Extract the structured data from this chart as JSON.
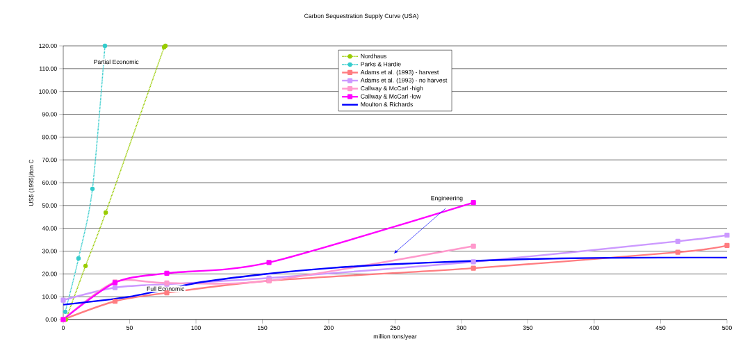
{
  "chart_data": {
    "type": "line",
    "title": "Carbon Sequestration Supply Curve (USA)",
    "xlabel": "million tons/year",
    "ylabel": "US$ (1995)/ton C",
    "xlim": [
      0,
      500
    ],
    "ylim": [
      0,
      120
    ],
    "xticks": [
      0,
      50,
      100,
      150,
      200,
      250,
      300,
      350,
      400,
      450,
      500
    ],
    "yticks": [
      {
        "value": 0,
        "label": "0.00"
      },
      {
        "value": 10,
        "label": "10.00"
      },
      {
        "value": 20,
        "label": "20.00"
      },
      {
        "value": 30,
        "label": "30.00"
      },
      {
        "value": 40,
        "label": "40.00"
      },
      {
        "value": 50,
        "label": "50.00"
      },
      {
        "value": 60,
        "label": "60.00"
      },
      {
        "value": 70,
        "label": "70.00"
      },
      {
        "value": 80,
        "label": "80.00"
      },
      {
        "value": 90,
        "label": "90.00"
      },
      {
        "value": 100,
        "label": "100.00"
      },
      {
        "value": 110,
        "label": "110.00"
      },
      {
        "value": 120,
        "label": "120.00"
      }
    ],
    "grid": "y",
    "legend": "top",
    "series": [
      {
        "name": "Nordhaus",
        "color": "#99cc00",
        "marker": "circle",
        "line_style": "dotted",
        "x": [
          2,
          16.8,
          32,
          76,
          77
        ],
        "values": [
          0,
          23.5,
          46.9,
          119.4,
          120
        ]
      },
      {
        "name": "Parks & Hardie",
        "color": "#33cccc",
        "marker": "circle",
        "line_style": "dotted",
        "x": [
          1.5,
          11.5,
          22,
          31.4
        ],
        "values": [
          3.4,
          26.8,
          57.3,
          120
        ]
      },
      {
        "name": "Adams et al. (1993) - harvest",
        "color": "#ff7c80",
        "marker": "square",
        "line_style": "solid",
        "x": [
          0,
          39,
          78,
          155,
          309,
          463,
          500
        ],
        "values": [
          0,
          8,
          11.7,
          17,
          22.5,
          29.5,
          32.5
        ]
      },
      {
        "name": "Adams et al. (1993) - no harvest",
        "color": "#cc99ff",
        "marker": "square",
        "line_style": "solid",
        "x": [
          0,
          39,
          78,
          155,
          309,
          463,
          500
        ],
        "values": [
          8.5,
          14,
          15.5,
          18.2,
          25.3,
          34.3,
          37
        ]
      },
      {
        "name": "Callway & McCarl -high",
        "color": "#ff99cc",
        "marker": "square",
        "line_style": "solid",
        "x": [
          0,
          39,
          78,
          155,
          309
        ],
        "values": [
          0,
          16.5,
          16,
          17,
          32.2
        ]
      },
      {
        "name": "Callway & McCarl -low",
        "color": "#ff00ff",
        "marker": "square",
        "line_style": "solid",
        "x": [
          0,
          39,
          78,
          155,
          309
        ],
        "values": [
          0,
          16.2,
          20.3,
          25,
          51.3
        ]
      },
      {
        "name": "Moulton & Richards",
        "color": "#0000ff",
        "marker": "none",
        "line_style": "solid",
        "x": [
          0,
          50,
          100,
          150,
          200,
          250,
          300,
          350,
          400,
          450,
          500
        ],
        "values": [
          6.5,
          10,
          16,
          19.8,
          22.5,
          24.3,
          25.5,
          26.5,
          27,
          27.2,
          27.2
        ]
      }
    ],
    "annotations": [
      "Partial Economic",
      "Full Economic",
      "Engineering"
    ]
  }
}
